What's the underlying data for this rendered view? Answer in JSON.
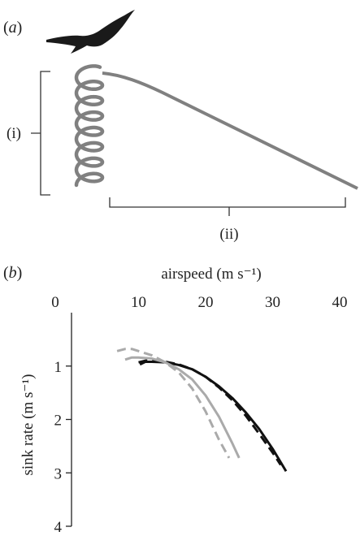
{
  "panel_a": {
    "label_prefix": "(",
    "label_letter": "a",
    "label_suffix": ")",
    "bracket_i_label": "(i)",
    "bracket_ii_label": "(ii)"
  },
  "panel_b": {
    "label_prefix": "(",
    "label_letter": "b",
    "label_suffix": ")"
  },
  "colors": {
    "trajectory": "#808080",
    "bird": "#1a1a1a",
    "axis": "#222222",
    "series_dark": "#111111",
    "series_light": "#aaaaaa"
  },
  "chart_data": {
    "type": "line",
    "xlabel": "airspeed (m s⁻¹)",
    "ylabel": "sink rate (m s⁻¹)",
    "x_axis_position": "top",
    "y_axis_inverted": true,
    "xlim": [
      0,
      40
    ],
    "ylim": [
      0,
      4
    ],
    "xticks": [
      0,
      10,
      20,
      30,
      40
    ],
    "yticks": [
      1,
      2,
      3,
      4
    ],
    "grid": false,
    "series": [
      {
        "style": "solid",
        "color": "#111111",
        "x": [
          10.2,
          11.0,
          12.0,
          14.0,
          16.0,
          18.0,
          20.0,
          22.0,
          24.0,
          26.0,
          28.0,
          30.0,
          32.0
        ],
        "y": [
          0.97,
          0.92,
          0.92,
          0.93,
          0.98,
          1.06,
          1.2,
          1.38,
          1.6,
          1.87,
          2.18,
          2.55,
          2.97
        ]
      },
      {
        "style": "dashed",
        "color": "#111111",
        "x": [
          10.0,
          11.0,
          12.0,
          14.0,
          16.0,
          18.0,
          20.0,
          22.0,
          24.0,
          26.0,
          28.0,
          30.0,
          31.2
        ],
        "y": [
          0.93,
          0.9,
          0.9,
          0.92,
          0.97,
          1.06,
          1.2,
          1.4,
          1.64,
          1.93,
          2.27,
          2.62,
          2.85
        ]
      },
      {
        "style": "solid",
        "color": "#aaaaaa",
        "x": [
          8.0,
          9.0,
          10.0,
          12.0,
          14.0,
          16.0,
          18.0,
          20.0,
          22.0,
          24.0,
          25.0
        ],
        "y": [
          0.88,
          0.84,
          0.84,
          0.86,
          0.93,
          1.06,
          1.25,
          1.55,
          1.95,
          2.45,
          2.72
        ]
      },
      {
        "style": "dashed",
        "color": "#aaaaaa",
        "x": [
          6.8,
          8.0,
          9.0,
          10.0,
          12.0,
          14.0,
          16.0,
          18.0,
          20.0,
          22.0,
          23.5
        ],
        "y": [
          0.72,
          0.68,
          0.68,
          0.72,
          0.8,
          0.93,
          1.12,
          1.42,
          1.85,
          2.38,
          2.72
        ]
      }
    ]
  }
}
